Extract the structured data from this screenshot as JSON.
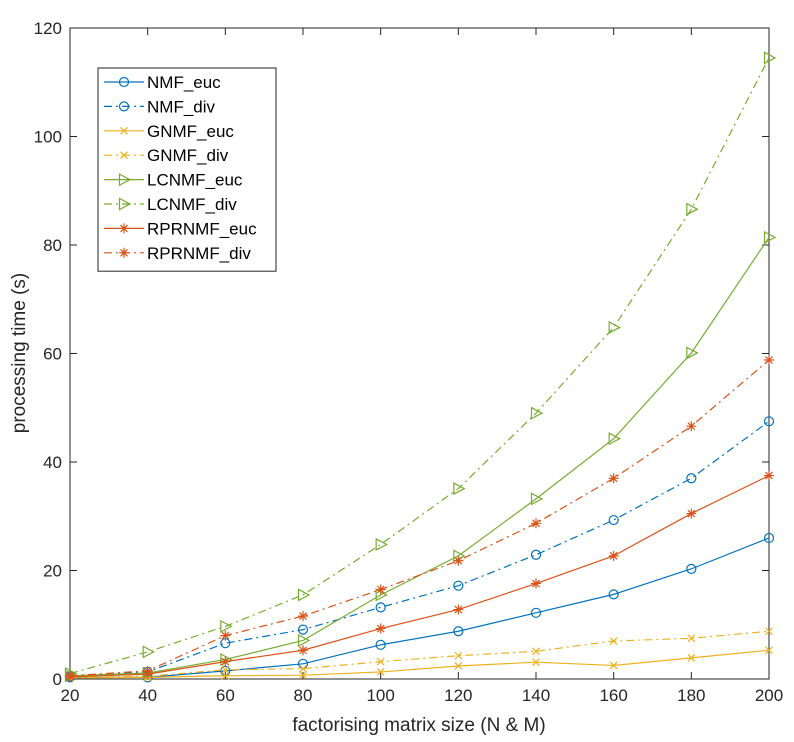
{
  "chart_data": {
    "type": "line",
    "title": "",
    "xlabel": "factorising matrix size (N & M)",
    "ylabel": "processing time (s)",
    "xlim": [
      20,
      200
    ],
    "ylim": [
      0,
      120
    ],
    "xticks": [
      20,
      40,
      60,
      80,
      100,
      120,
      140,
      160,
      180,
      200
    ],
    "yticks": [
      0,
      20,
      40,
      60,
      80,
      100,
      120
    ],
    "legend_position": "top-left",
    "grid": false,
    "x": [
      20,
      40,
      60,
      80,
      100,
      120,
      140,
      160,
      180,
      200
    ],
    "series": [
      {
        "name": "NMF_euc",
        "color": "#0072BD",
        "dash": "solid",
        "marker": "circle",
        "values": [
          0.3,
          0.3,
          1.5,
          2.8,
          6.3,
          8.8,
          12.2,
          15.6,
          20.3,
          26.0
        ]
      },
      {
        "name": "NMF_div",
        "color": "#0072BD",
        "dash": "dashdot",
        "marker": "circle",
        "values": [
          0.5,
          1.3,
          6.6,
          9.1,
          13.2,
          17.2,
          22.9,
          29.3,
          37.0,
          47.5
        ]
      },
      {
        "name": "GNMF_euc",
        "color": "#EDB120",
        "dash": "solid",
        "marker": "x",
        "values": [
          0.2,
          0.3,
          0.6,
          0.7,
          1.3,
          2.4,
          3.1,
          2.5,
          3.9,
          5.3
        ]
      },
      {
        "name": "GNMF_div",
        "color": "#EDB120",
        "dash": "dashdot",
        "marker": "x",
        "values": [
          0.3,
          0.5,
          1.7,
          1.9,
          3.2,
          4.3,
          5.1,
          7.0,
          7.5,
          8.8
        ]
      },
      {
        "name": "LCNMF_euc",
        "color": "#77AC30",
        "dash": "solid",
        "marker": "triangle-right",
        "values": [
          0.6,
          1.1,
          3.6,
          7.1,
          15.5,
          22.7,
          33.2,
          44.3,
          60.1,
          81.4
        ]
      },
      {
        "name": "LCNMF_div",
        "color": "#77AC30",
        "dash": "dashdot",
        "marker": "triangle-right",
        "values": [
          1.0,
          5.0,
          9.7,
          15.5,
          24.8,
          35.1,
          49.0,
          64.8,
          86.6,
          114.5
        ]
      },
      {
        "name": "RPRNMF_euc",
        "color": "#D95319",
        "dash": "solid",
        "marker": "asterisk",
        "values": [
          0.4,
          0.9,
          3.2,
          5.3,
          9.3,
          12.8,
          17.6,
          22.7,
          30.5,
          37.5
        ]
      },
      {
        "name": "RPRNMF_div",
        "color": "#D95319",
        "dash": "dashdot",
        "marker": "asterisk",
        "values": [
          0.6,
          1.5,
          8.0,
          11.6,
          16.5,
          21.8,
          28.7,
          37.0,
          46.6,
          58.8
        ]
      }
    ]
  }
}
